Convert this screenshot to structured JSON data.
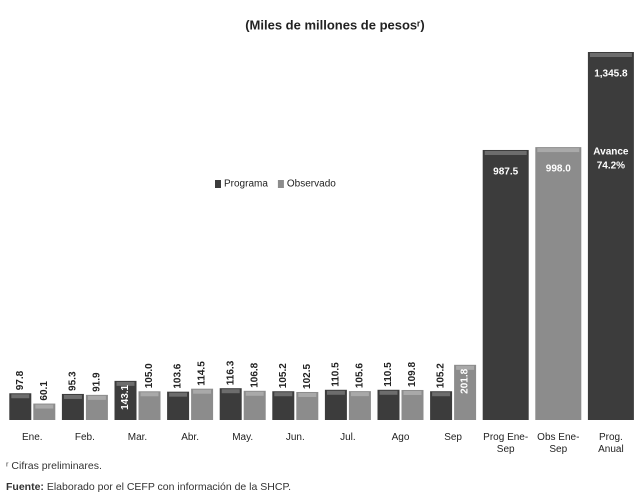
{
  "chart_data": {
    "type": "bar",
    "title": "(Miles de millones de pesosʳ)",
    "categories": [
      "Ene.",
      "Feb.",
      "Mar.",
      "Abr.",
      "May.",
      "Jun.",
      "Jul.",
      "Ago",
      "Sep",
      "Prog Ene-Sep",
      "Obs Ene-Sep",
      "Prog. Anual"
    ],
    "series": [
      {
        "name": "Programa",
        "color": "#3c3c3c",
        "values": [
          97.8,
          95.3,
          143.1,
          103.6,
          116.3,
          105.2,
          110.5,
          110.5,
          105.2,
          987.5,
          null,
          1345.8
        ],
        "value_labels": [
          "97.8",
          "95.3",
          "143.1",
          "103.6",
          "116.3",
          "105.2",
          "110.5",
          "110.5",
          "105.2",
          "987.5",
          null,
          "1,345.8"
        ]
      },
      {
        "name": "Observado",
        "color": "#8c8c8c",
        "values": [
          60.1,
          91.9,
          105.0,
          114.5,
          106.8,
          102.5,
          105.6,
          109.8,
          201.8,
          null,
          998.0,
          null
        ],
        "value_labels": [
          "60.1",
          "91.9",
          "105.0",
          "114.5",
          "106.8",
          "102.5",
          "105.6",
          "109.8",
          "201.8",
          null,
          "998.0",
          null
        ]
      }
    ],
    "annotation": {
      "label": "Avance",
      "value": "74.2%"
    },
    "legend_position": "center",
    "notes": [
      "ʳ Cifras preliminares."
    ],
    "source": {
      "label": "Fuente:",
      "text": "Elaborado por el CEFP con información de la SHCP."
    }
  }
}
